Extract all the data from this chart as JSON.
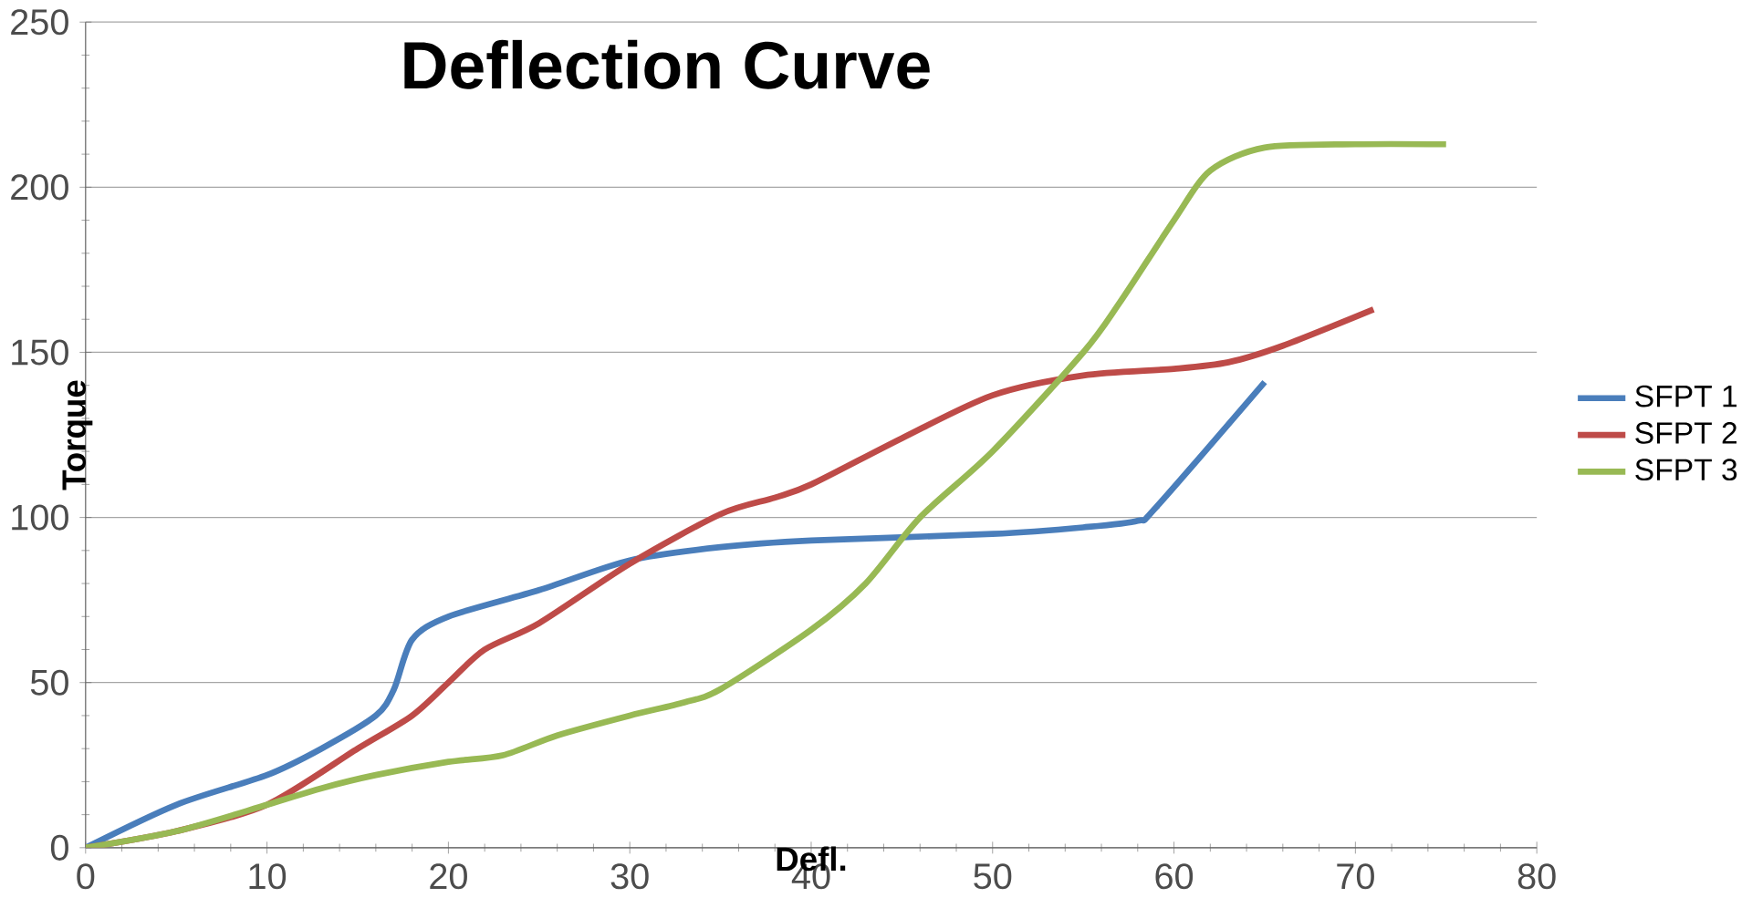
{
  "chart_data": {
    "type": "line",
    "title": "Deflection Curve",
    "xlabel": "Defl.",
    "ylabel": "Torque",
    "xlim": [
      0,
      80
    ],
    "ylim": [
      0,
      250
    ],
    "xticks": [
      0,
      10,
      20,
      30,
      40,
      50,
      60,
      70,
      80
    ],
    "yticks": [
      0,
      50,
      100,
      150,
      200,
      250
    ],
    "grid": "y",
    "legend": "right",
    "marker": "none",
    "series": [
      {
        "name": "SFPT 1",
        "color": "#4a7ebb",
        "x": [
          0,
          5,
          10,
          13,
          16,
          17,
          18,
          20,
          25,
          30,
          35,
          40,
          50,
          55,
          58,
          59,
          65
        ],
        "values": [
          0,
          13,
          22,
          30,
          40,
          48,
          63,
          70,
          78,
          87,
          91,
          93,
          95,
          97,
          99,
          103,
          141
        ]
      },
      {
        "name": "SFPT 2",
        "color": "#be4b48",
        "x": [
          0,
          5,
          10,
          15,
          18,
          20,
          22,
          25,
          30,
          35,
          38,
          40,
          45,
          50,
          55,
          60,
          63,
          66,
          71
        ],
        "values": [
          0,
          5,
          13,
          30,
          40,
          50,
          60,
          68,
          86,
          101,
          106,
          110,
          124,
          137,
          143,
          145,
          147,
          152,
          163
        ]
      },
      {
        "name": "SFPT 3",
        "color": "#98b954",
        "x": [
          0,
          5,
          10,
          13,
          16,
          20,
          23,
          26,
          30,
          33,
          35,
          40,
          43,
          46,
          50,
          55,
          57,
          60,
          62,
          65,
          70,
          75
        ],
        "values": [
          0,
          5,
          13,
          18,
          22,
          26,
          28,
          34,
          40,
          44,
          48,
          66,
          80,
          100,
          120,
          150,
          165,
          190,
          205,
          212,
          213,
          213
        ]
      }
    ]
  }
}
